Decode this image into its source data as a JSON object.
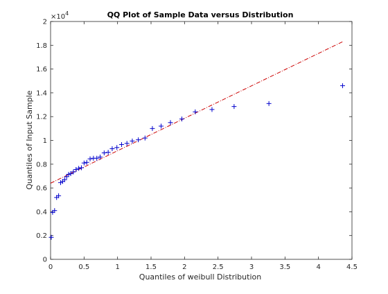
{
  "chart_data": {
    "type": "scatter",
    "title": "QQ Plot of Sample Data versus Distribution",
    "xlabel": "Quantiles of weibull Distribution",
    "ylabel": "Quantiles of Input Sample",
    "xlim": [
      0,
      4.5
    ],
    "ylim": [
      0,
      2
    ],
    "y_multiplier": {
      "base": "×10",
      "exponent": "4"
    },
    "x_ticks": [
      "0",
      "0.5",
      "1",
      "1.5",
      "2",
      "2.5",
      "3",
      "3.5",
      "4",
      "4.5"
    ],
    "y_ticks": [
      "0",
      "0.2",
      "0.4",
      "0.6",
      "0.8",
      "1",
      "1.2",
      "1.4",
      "1.6",
      "1.8",
      "2"
    ],
    "grid": false,
    "marker": "+",
    "marker_color": "#0000cc",
    "reference_line_color": "#cc0000",
    "points": [
      {
        "x": 0.01,
        "y": 0.185
      },
      {
        "x": 0.03,
        "y": 0.395
      },
      {
        "x": 0.06,
        "y": 0.41
      },
      {
        "x": 0.09,
        "y": 0.52
      },
      {
        "x": 0.12,
        "y": 0.535
      },
      {
        "x": 0.15,
        "y": 0.645
      },
      {
        "x": 0.18,
        "y": 0.655
      },
      {
        "x": 0.21,
        "y": 0.67
      },
      {
        "x": 0.24,
        "y": 0.695
      },
      {
        "x": 0.27,
        "y": 0.715
      },
      {
        "x": 0.3,
        "y": 0.72
      },
      {
        "x": 0.34,
        "y": 0.735
      },
      {
        "x": 0.38,
        "y": 0.755
      },
      {
        "x": 0.42,
        "y": 0.765
      },
      {
        "x": 0.46,
        "y": 0.77
      },
      {
        "x": 0.5,
        "y": 0.81
      },
      {
        "x": 0.54,
        "y": 0.815
      },
      {
        "x": 0.59,
        "y": 0.845
      },
      {
        "x": 0.64,
        "y": 0.85
      },
      {
        "x": 0.69,
        "y": 0.85
      },
      {
        "x": 0.74,
        "y": 0.86
      },
      {
        "x": 0.8,
        "y": 0.895
      },
      {
        "x": 0.86,
        "y": 0.9
      },
      {
        "x": 0.92,
        "y": 0.93
      },
      {
        "x": 0.99,
        "y": 0.94
      },
      {
        "x": 1.06,
        "y": 0.965
      },
      {
        "x": 1.14,
        "y": 0.975
      },
      {
        "x": 1.22,
        "y": 0.995
      },
      {
        "x": 1.31,
        "y": 1.005
      },
      {
        "x": 1.41,
        "y": 1.02
      },
      {
        "x": 1.52,
        "y": 1.1
      },
      {
        "x": 1.65,
        "y": 1.12
      },
      {
        "x": 1.79,
        "y": 1.15
      },
      {
        "x": 1.96,
        "y": 1.18
      },
      {
        "x": 2.16,
        "y": 1.24
      },
      {
        "x": 2.41,
        "y": 1.26
      },
      {
        "x": 2.74,
        "y": 1.285
      },
      {
        "x": 3.26,
        "y": 1.31
      },
      {
        "x": 4.36,
        "y": 1.46
      }
    ],
    "reference_line": [
      {
        "x": 0,
        "y": 0.64
      },
      {
        "x": 4.36,
        "y": 1.83
      }
    ]
  }
}
